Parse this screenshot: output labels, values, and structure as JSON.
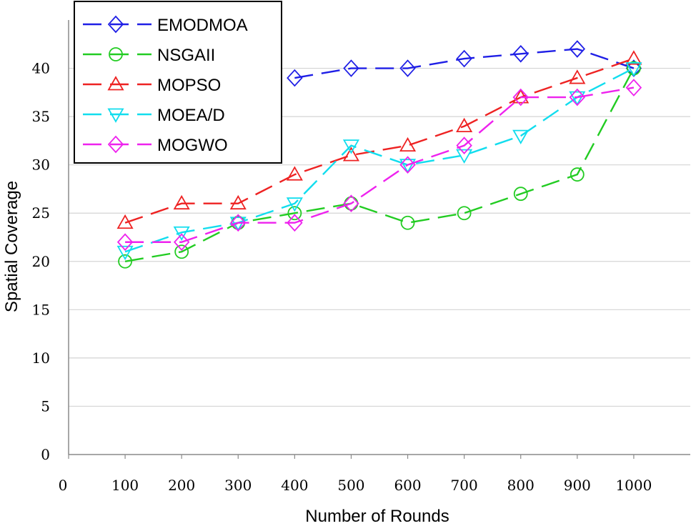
{
  "chart_data": {
    "type": "line",
    "title": "",
    "xlabel": "Number of Rounds",
    "ylabel": "Spatial Coverage",
    "xlim": [
      0,
      1100
    ],
    "ylim": [
      0,
      45
    ],
    "x_ticks": [
      "0",
      "100",
      "200",
      "300",
      "400",
      "500",
      "600",
      "700",
      "800",
      "900",
      "1000"
    ],
    "y_ticks": [
      "0",
      "5",
      "10",
      "15",
      "20",
      "25",
      "30",
      "35",
      "40"
    ],
    "grid": "horizontal",
    "legend_position": "top-left",
    "series": [
      {
        "name": "EMODMOA",
        "color": "#1f1fe6",
        "marker": "diamond",
        "x": [
          400,
          500,
          600,
          700,
          800,
          900,
          1000
        ],
        "values": [
          39,
          40,
          40,
          41,
          41.5,
          42,
          40
        ]
      },
      {
        "name": "NSGAII",
        "color": "#22cc22",
        "marker": "circle",
        "x": [
          100,
          200,
          300,
          400,
          500,
          600,
          700,
          800,
          900,
          1000
        ],
        "values": [
          20,
          21,
          24,
          25,
          26,
          24,
          25,
          27,
          29,
          40
        ]
      },
      {
        "name": "MOPSO",
        "color": "#ee2222",
        "marker": "triangle-up",
        "x": [
          100,
          200,
          300,
          400,
          500,
          600,
          700,
          800,
          900,
          1000
        ],
        "values": [
          24,
          26,
          26,
          29,
          31,
          32,
          34,
          37,
          39,
          41
        ]
      },
      {
        "name": "MOEA/D",
        "color": "#11ddee",
        "marker": "triangle-down",
        "x": [
          100,
          200,
          300,
          400,
          500,
          600,
          700,
          800,
          900,
          1000
        ],
        "values": [
          21,
          23,
          24,
          26,
          32,
          30,
          31,
          33,
          37,
          40
        ]
      },
      {
        "name": "MOGWO",
        "color": "#ee22ee",
        "marker": "diamond",
        "x": [
          100,
          200,
          300,
          400,
          500,
          600,
          700,
          800,
          900,
          1000
        ],
        "values": [
          22,
          22,
          24,
          24,
          26,
          30,
          32,
          37,
          37,
          38
        ]
      }
    ]
  }
}
